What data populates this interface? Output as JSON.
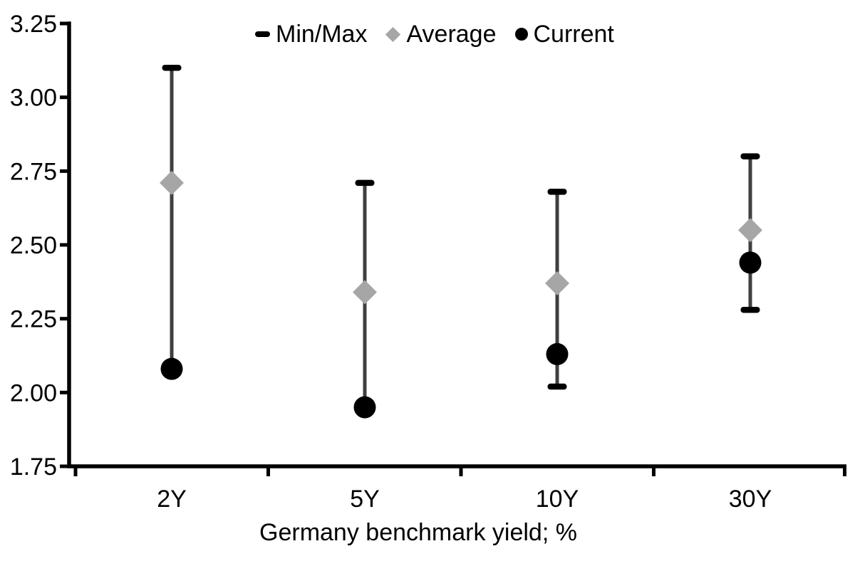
{
  "chart_data": {
    "type": "scatter",
    "subtype": "min-max-range-with-markers",
    "xlabel": "Germany benchmark yield; %",
    "ylabel": "",
    "ylim": [
      1.75,
      3.25
    ],
    "ytick_values": [
      3.25,
      3.0,
      2.75,
      2.5,
      2.25,
      2.0,
      1.75
    ],
    "ytick_labels": [
      "3.25",
      "3.00",
      "2.75",
      "2.50",
      "2.25",
      "2.00",
      "1.75"
    ],
    "categories": [
      "2Y",
      "5Y",
      "10Y",
      "30Y"
    ],
    "legend": [
      "Min/Max",
      "Average",
      "Current"
    ],
    "legend_position": "top",
    "grid": false,
    "series": [
      {
        "name": "Min/Max",
        "type": "range",
        "min": [
          2.08,
          1.95,
          2.02,
          2.28
        ],
        "max": [
          3.1,
          2.71,
          2.68,
          2.8
        ]
      },
      {
        "name": "Average",
        "type": "diamond",
        "values": [
          2.71,
          2.34,
          2.37,
          2.55
        ]
      },
      {
        "name": "Current",
        "type": "circle",
        "values": [
          2.08,
          1.95,
          2.13,
          2.44
        ]
      }
    ],
    "colors": {
      "range_line": "#3F3F3F",
      "range_cap": "#000000",
      "average": "#A6A6A6",
      "current": "#000000",
      "axis": "#000000",
      "text": "#000000",
      "background": "#FFFFFF"
    }
  }
}
